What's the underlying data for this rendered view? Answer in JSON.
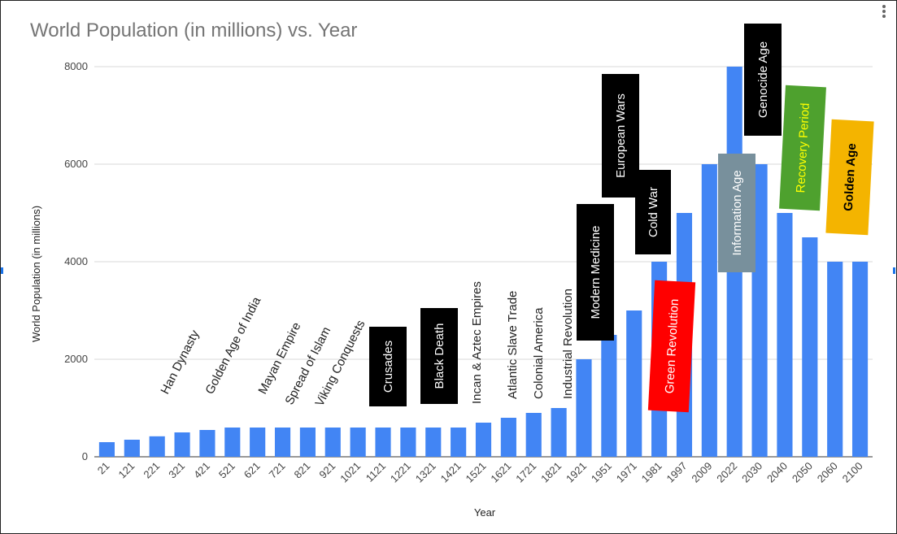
{
  "chart_data": {
    "type": "bar",
    "title": "World Population (in millions) vs. Year",
    "xlabel": "Year",
    "ylabel": "World Population (in millions)",
    "ylim": [
      0,
      8000
    ],
    "yticks": [
      "0",
      "2000",
      "4000",
      "6000",
      "8000"
    ],
    "grid": true,
    "categories": [
      "21",
      "121",
      "221",
      "321",
      "421",
      "521",
      "621",
      "721",
      "821",
      "921",
      "1021",
      "1121",
      "1221",
      "1321",
      "1421",
      "1521",
      "1621",
      "1721",
      "1821",
      "1921",
      "1951",
      "1971",
      "1981",
      "1997",
      "2009",
      "2022",
      "2030",
      "2040",
      "2050",
      "2060",
      "2100"
    ],
    "values": [
      300,
      350,
      420,
      500,
      550,
      600,
      600,
      600,
      600,
      600,
      600,
      600,
      600,
      600,
      600,
      700,
      800,
      900,
      1000,
      2000,
      2500,
      3000,
      4000,
      5000,
      6000,
      8000,
      6000,
      5000,
      4500,
      4000,
      4000
    ],
    "annotations": [
      {
        "text": "Han Dynasty",
        "category": "221",
        "style": "plain"
      },
      {
        "text": "Golden Age of India",
        "category": "421",
        "style": "plain"
      },
      {
        "text": "Mayan Empire",
        "category": "621",
        "style": "plain"
      },
      {
        "text": "Spread of Islam",
        "category": "721",
        "style": "plain"
      },
      {
        "text": "Viking Conquests",
        "category": "821",
        "style": "plain"
      },
      {
        "text": "Crusades",
        "category": "1121",
        "style": "box",
        "bg": "#000000",
        "fg": "#ffffff"
      },
      {
        "text": "Black Death",
        "category": "1321",
        "style": "box",
        "bg": "#000000",
        "fg": "#ffffff"
      },
      {
        "text": "Incan & Aztec Empires",
        "category": "1521",
        "style": "plain"
      },
      {
        "text": "Atlantic Slave Trade",
        "category": "1621",
        "style": "plain"
      },
      {
        "text": "Colonial America",
        "category": "1721",
        "style": "plain"
      },
      {
        "text": "Industrial Revolution",
        "category": "1821",
        "style": "plain"
      },
      {
        "text": "Modern Medicine",
        "category": "1921",
        "style": "box",
        "bg": "#000000",
        "fg": "#ffffff"
      },
      {
        "text": "European Wars",
        "category": "1951",
        "style": "box",
        "bg": "#000000",
        "fg": "#ffffff"
      },
      {
        "text": "Cold War",
        "category": "1981",
        "style": "box",
        "bg": "#000000",
        "fg": "#ffffff"
      },
      {
        "text": "Green Revolution",
        "category": "1997",
        "style": "box",
        "bg": "#ff0000",
        "fg": "#ffffff"
      },
      {
        "text": "Information Age",
        "category": "2022",
        "style": "box",
        "bg": "#78909c",
        "fg": "#ffffff"
      },
      {
        "text": "Genocide Age",
        "category": "2030",
        "style": "box",
        "bg": "#000000",
        "fg": "#ffffff"
      },
      {
        "text": "Recovery Period",
        "category": "2040",
        "style": "box",
        "bg": "#4ea12e",
        "fg": "#ffff00"
      },
      {
        "text": "Golden Age",
        "category": "2060",
        "style": "box",
        "bg": "#f4b400",
        "fg": "#000000"
      }
    ]
  },
  "colors": {
    "bar": "#4285f4",
    "title": "#757575",
    "grid": "#d9d9d9"
  },
  "menu_icon": "more-vert-icon"
}
